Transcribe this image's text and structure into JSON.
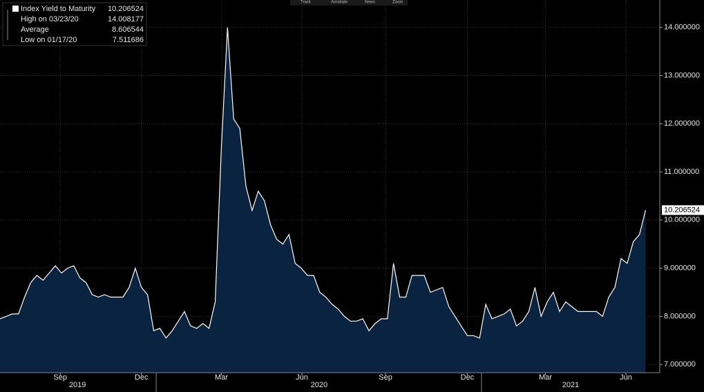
{
  "chart_data": {
    "type": "area",
    "toolbar": [
      "Track",
      "Annotate",
      "News",
      "Zoom"
    ],
    "legend": {
      "items": [
        {
          "label": "Index Yield to Maturity",
          "value": 10.206524
        },
        {
          "label": "High on 03/23/20",
          "value": 14.008177
        },
        {
          "label": "Average",
          "value": 8.606544
        },
        {
          "label": "Low on 01/17/20",
          "value": 7.511686
        }
      ]
    },
    "x": [
      0,
      1,
      2,
      3,
      4,
      5,
      6,
      7,
      8,
      9,
      10,
      11,
      12,
      13,
      14,
      15,
      16,
      17,
      18,
      19,
      20,
      21,
      22,
      23,
      24,
      25,
      26,
      27,
      28,
      29,
      30,
      31,
      32,
      33,
      34,
      35,
      36,
      37,
      38,
      39,
      40,
      41,
      42,
      43,
      44,
      45,
      46,
      47,
      48,
      49,
      50,
      51,
      52,
      53,
      54,
      55,
      56,
      57,
      58,
      59,
      60,
      61,
      62,
      63,
      64,
      65,
      66,
      67,
      68,
      69,
      70,
      71,
      72,
      73,
      74,
      75,
      76,
      77,
      78,
      79,
      80,
      81,
      82,
      83,
      84,
      85,
      86,
      87,
      88,
      89,
      90,
      91,
      92,
      93,
      94,
      95,
      96,
      97,
      98,
      99,
      100,
      101,
      102,
      103,
      104,
      105
    ],
    "series": [
      {
        "name": "Index Yield to Maturity",
        "color": "#ffffff",
        "fill": "#0a2340",
        "values": [
          7.95,
          8.0,
          8.05,
          8.05,
          8.4,
          8.7,
          8.85,
          8.75,
          8.9,
          9.05,
          8.9,
          9.0,
          9.05,
          8.8,
          8.7,
          8.45,
          8.4,
          8.45,
          8.4,
          8.4,
          8.4,
          8.6,
          9.0,
          8.6,
          8.45,
          7.7,
          7.75,
          7.55,
          7.7,
          7.9,
          8.1,
          7.8,
          7.75,
          7.85,
          7.75,
          8.3,
          11.5,
          14.0,
          12.1,
          11.9,
          10.7,
          10.2,
          10.6,
          10.4,
          9.9,
          9.6,
          9.5,
          9.7,
          9.1,
          9.0,
          8.85,
          8.85,
          8.5,
          8.4,
          8.25,
          8.15,
          8.0,
          7.9,
          7.9,
          7.95,
          7.7,
          7.85,
          7.95,
          7.95,
          9.1,
          8.4,
          8.4,
          8.85,
          8.85,
          8.85,
          8.5,
          8.55,
          8.6,
          8.2,
          8.0,
          7.8,
          7.6,
          7.6,
          7.55,
          8.25,
          7.95,
          8.0,
          8.05,
          8.15,
          7.8,
          7.9,
          8.1,
          8.6,
          8.0,
          8.3,
          8.5,
          8.1,
          8.3,
          8.2,
          8.1,
          8.1,
          8.1,
          8.1,
          8.0,
          8.4,
          8.6,
          9.2,
          9.1,
          9.55,
          9.7,
          10.206524
        ]
      }
    ],
    "xlim": [
      0,
      107.3
    ],
    "xticks": [
      {
        "value": 9.8,
        "label": "Sep"
      },
      {
        "value": 23.0,
        "label": "Dec"
      },
      {
        "value": 36.0,
        "label": "Mar"
      },
      {
        "value": 49.1,
        "label": "Jun"
      },
      {
        "value": 62.7,
        "label": "Sep"
      },
      {
        "value": 76.0,
        "label": "Dec"
      },
      {
        "value": 88.7,
        "label": "Mar"
      },
      {
        "value": 101.8,
        "label": "Jun"
      }
    ],
    "year_ticks": [
      {
        "value": 12.6,
        "label": "2019"
      },
      {
        "value": 51.9,
        "label": "2020"
      },
      {
        "value": 92.8,
        "label": "2021"
      }
    ],
    "xticks_major": [
      25.4,
      78.3
    ],
    "ylim": [
      6.83,
      14.57
    ],
    "yticks": [
      {
        "value": 7,
        "label": "7.000000"
      },
      {
        "value": 8,
        "label": "8.000000"
      },
      {
        "value": 9,
        "label": "9.000000"
      },
      {
        "value": 10,
        "label": "10.000000"
      },
      {
        "value": 11,
        "label": "11.000000"
      },
      {
        "value": 12,
        "label": "12.000000"
      },
      {
        "value": 13,
        "label": "13.000000"
      },
      {
        "value": 14,
        "label": "14.000000"
      }
    ],
    "grid": true
  }
}
